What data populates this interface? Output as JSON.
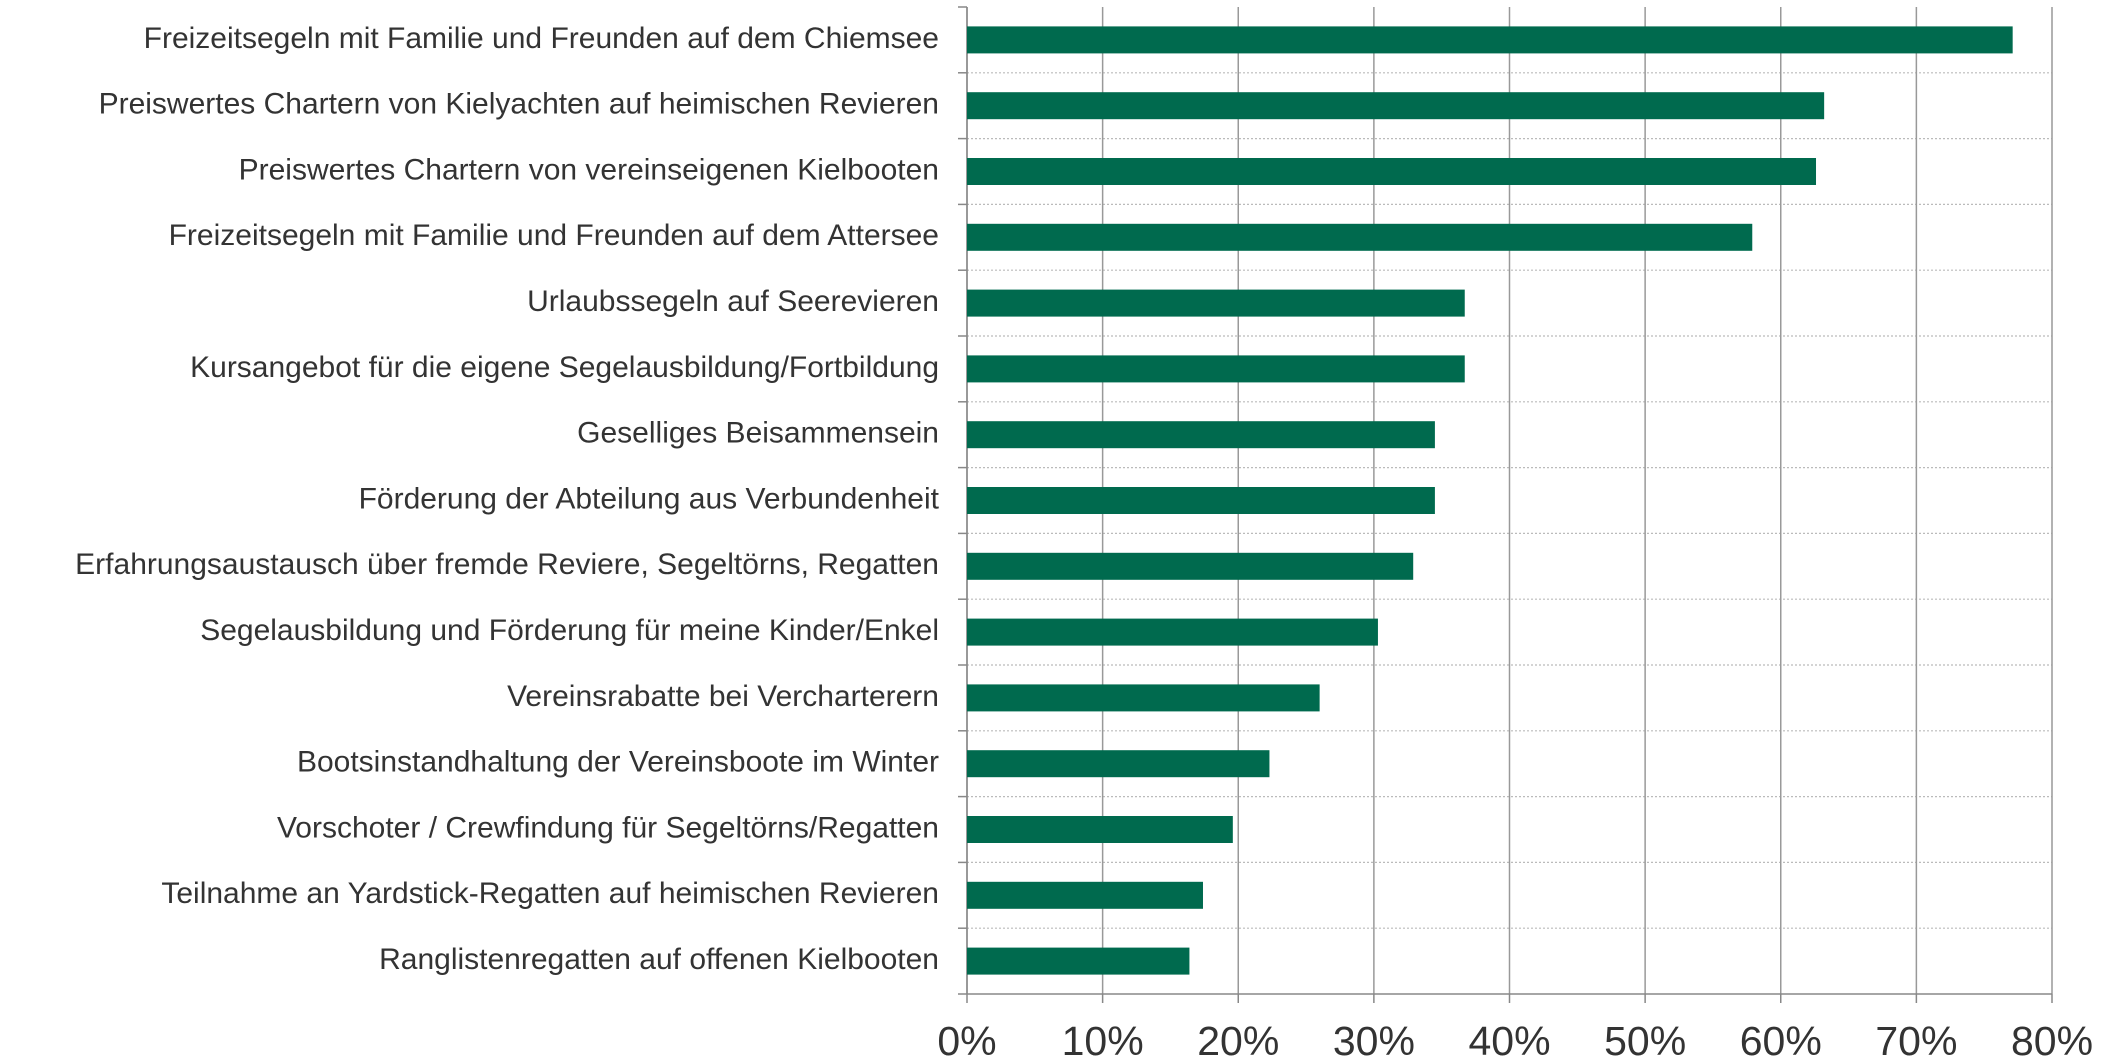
{
  "chart_data": {
    "type": "barh",
    "categories": [
      "Freizeitsegeln mit Familie und Freunden auf dem Chiemsee",
      "Preiswertes Chartern von Kielyachten auf heimischen Revieren",
      "Preiswertes Chartern von vereinseigenen Kielbooten",
      "Freizeitsegeln mit Familie und Freunden auf dem Attersee",
      "Urlaubssegeln auf Seerevieren",
      "Kursangebot für die eigene Segelausbildung/Fortbildung",
      "Geselliges Beisammensein",
      "Förderung der Abteilung aus Verbundenheit",
      "Erfahrungsaustausch über fremde Reviere, Segeltörns, Regatten",
      "Segelausbildung und Förderung für meine Kinder/Enkel",
      "Vereinsrabatte bei Vercharterern",
      "Bootsinstandhaltung der Vereinsboote im Winter",
      "Vorschoter / Crewfindung für Segeltörns/Regatten",
      "Teilnahme an Yardstick-Regatten auf heimischen Revieren",
      "Ranglistenregatten auf offenen Kielbooten"
    ],
    "values": [
      77.1,
      63.2,
      62.6,
      57.9,
      36.7,
      36.7,
      34.5,
      34.5,
      32.9,
      30.3,
      26.0,
      22.3,
      19.6,
      17.4,
      16.4
    ],
    "color": "#006a4e",
    "xlim": [
      0,
      80
    ],
    "xticks": [
      {
        "value": 0,
        "label": "0%"
      },
      {
        "value": 10,
        "label": "10%"
      },
      {
        "value": 20,
        "label": "20%"
      },
      {
        "value": 30,
        "label": "30%"
      },
      {
        "value": 40,
        "label": "40%"
      },
      {
        "value": 50,
        "label": "50%"
      },
      {
        "value": 60,
        "label": "60%"
      },
      {
        "value": 70,
        "label": "70%"
      },
      {
        "value": 80,
        "label": "80%"
      }
    ],
    "grid": true
  }
}
